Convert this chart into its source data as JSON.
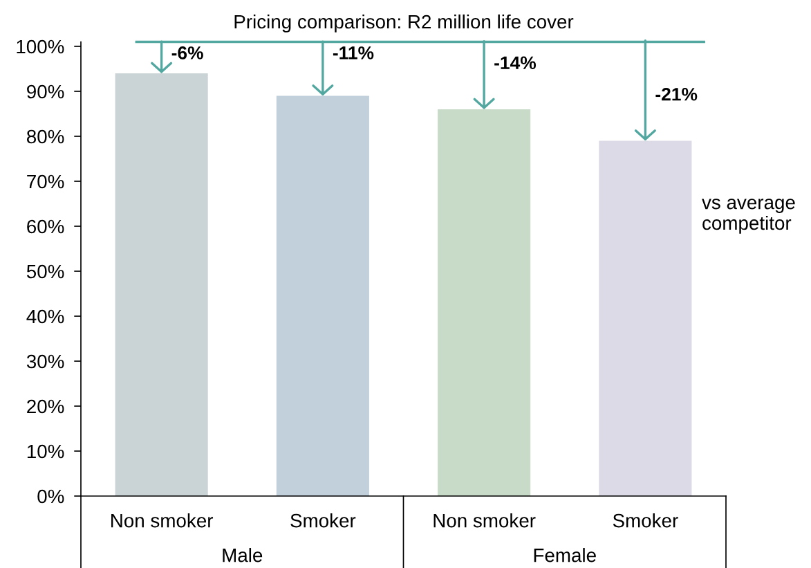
{
  "chart_data": {
    "type": "bar",
    "title": "Pricing comparison: R2 million life cover",
    "categories": [
      "Non smoker",
      "Smoker",
      "Non smoker",
      "Smoker"
    ],
    "values": [
      94,
      89,
      86,
      79
    ],
    "colors": [
      "#cad3d5",
      "#c2d0dc",
      "#c8dac8",
      "#dbdae6"
    ],
    "ylim": [
      0,
      101
    ],
    "yticks": [
      {
        "value": 0,
        "label": "0%"
      },
      {
        "value": 10,
        "label": "10%"
      },
      {
        "value": 20,
        "label": "20%"
      },
      {
        "value": 30,
        "label": "30%"
      },
      {
        "value": 40,
        "label": "40%"
      },
      {
        "value": 50,
        "label": "50%"
      },
      {
        "value": 60,
        "label": "60%"
      },
      {
        "value": 70,
        "label": "70%"
      },
      {
        "value": 80,
        "label": "80%"
      },
      {
        "value": 90,
        "label": "90%"
      },
      {
        "value": 100,
        "label": "100%"
      }
    ],
    "ref_lines": [
      {
        "axis": "y",
        "value": 101,
        "color": "#52a8a0"
      }
    ],
    "annotations": [
      {
        "text": "-6%",
        "y": 94
      },
      {
        "text": "-11%",
        "y": 89
      },
      {
        "text": "-14%",
        "y": 86
      },
      {
        "text": "-21%",
        "y": 79
      },
      "Male",
      "Female",
      "vs average competitor"
    ]
  }
}
